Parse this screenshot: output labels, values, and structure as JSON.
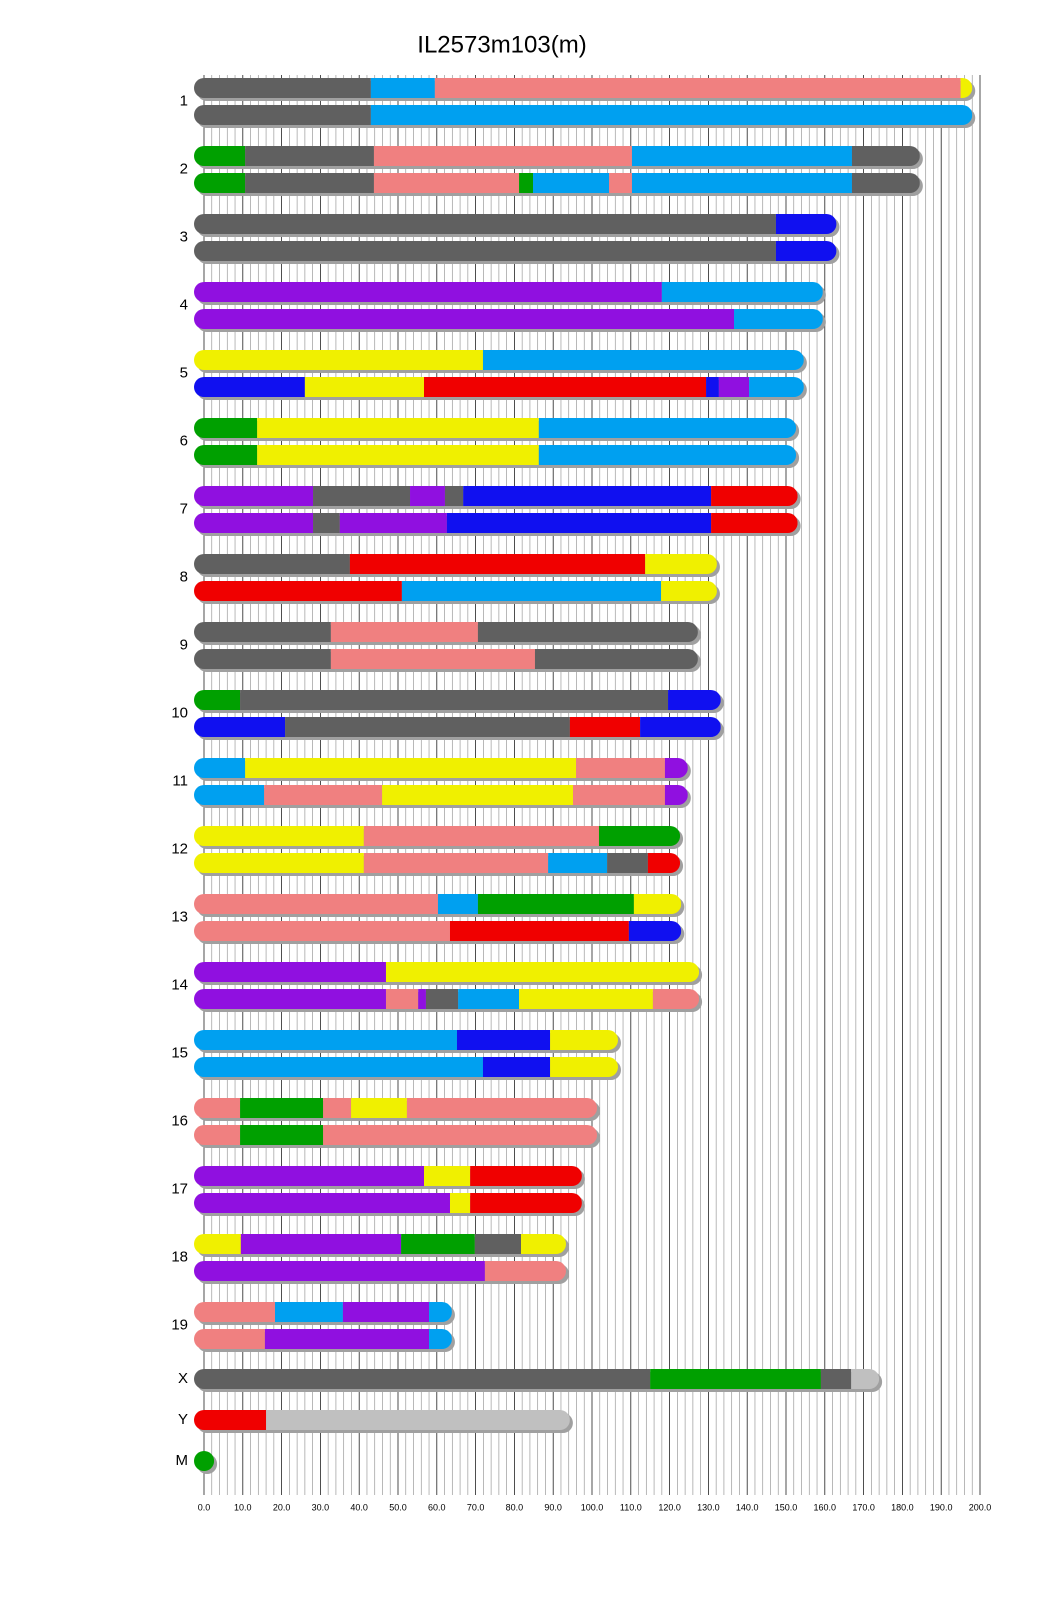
{
  "chart_data": {
    "type": "chromosome_painting",
    "title": "IL2573m103(m)",
    "xlim": [
      0,
      200
    ],
    "xticks": [
      {
        "value": 0,
        "label": "0.0"
      },
      {
        "value": 10,
        "label": "10.0"
      },
      {
        "value": 20,
        "label": "20.0"
      },
      {
        "value": 30,
        "label": "30.0"
      },
      {
        "value": 40,
        "label": "40.0"
      },
      {
        "value": 50,
        "label": "50.0"
      },
      {
        "value": 60,
        "label": "60.0"
      },
      {
        "value": 70,
        "label": "70.0"
      },
      {
        "value": 80,
        "label": "80.0"
      },
      {
        "value": 90,
        "label": "90.0"
      },
      {
        "value": 100,
        "label": "100.0"
      },
      {
        "value": 110,
        "label": "110.0"
      },
      {
        "value": 120,
        "label": "120.0"
      },
      {
        "value": 130,
        "label": "130.0"
      },
      {
        "value": 140,
        "label": "140.0"
      },
      {
        "value": 150,
        "label": "150.0"
      },
      {
        "value": 160,
        "label": "160.0"
      },
      {
        "value": 170,
        "label": "170.0"
      },
      {
        "value": 180,
        "label": "180.0"
      },
      {
        "value": 190,
        "label": "190.0"
      },
      {
        "value": 200,
        "label": "200.0"
      }
    ],
    "xminor": [
      2,
      4,
      6,
      8,
      12,
      14,
      16,
      18,
      22,
      24,
      26,
      28,
      32,
      34,
      36,
      38,
      42,
      44,
      46,
      48,
      52,
      54,
      56,
      58,
      62,
      64,
      66,
      68,
      72,
      74,
      76,
      78,
      82,
      84,
      86,
      88,
      92,
      94,
      96,
      98,
      102,
      104,
      106,
      108,
      112,
      114,
      116,
      118,
      122,
      124,
      126,
      128,
      132,
      134,
      136,
      138,
      142,
      144,
      146,
      148,
      152,
      154,
      156,
      158,
      162,
      164,
      166,
      168,
      172,
      174,
      176,
      178,
      182,
      184,
      186,
      188,
      192,
      194,
      196,
      198
    ],
    "chromosomes": [
      {
        "name": "1",
        "haplotypes": [
          {
            "ends": [
              43,
              59.5,
              195,
              198
            ],
            "colors": [
              "#606060",
              "#00a0f0",
              "#f08080",
              "#f0f000"
            ]
          },
          {
            "ends": [
              43,
              198
            ],
            "colors": [
              "#606060",
              "#00a0f0"
            ]
          }
        ]
      },
      {
        "name": "2",
        "haplotypes": [
          {
            "ends": [
              10.6,
              43.8,
              110.3,
              167,
              184.5
            ],
            "colors": [
              "#00a000",
              "#606060",
              "#f08080",
              "#00a0f0",
              "#606060"
            ]
          },
          {
            "ends": [
              10.6,
              43.8,
              81.2,
              84.8,
              104.4,
              110.3,
              167,
              184.5
            ],
            "colors": [
              "#00a000",
              "#606060",
              "#f08080",
              "#00a000",
              "#00a0f0",
              "#f08080",
              "#00a0f0",
              "#606060"
            ]
          }
        ]
      },
      {
        "name": "3",
        "haplotypes": [
          {
            "ends": [
              147.4,
              163
            ],
            "colors": [
              "#606060",
              "#1010f0"
            ]
          },
          {
            "ends": [
              147.4,
              163
            ],
            "colors": [
              "#606060",
              "#1010f0"
            ]
          }
        ]
      },
      {
        "name": "4",
        "haplotypes": [
          {
            "ends": [
              118,
              159.5
            ],
            "colors": [
              "#9010e0",
              "#00a0f0"
            ]
          },
          {
            "ends": [
              136.6,
              159.5
            ],
            "colors": [
              "#9010e0",
              "#00a0f0"
            ]
          }
        ]
      },
      {
        "name": "5",
        "haplotypes": [
          {
            "ends": [
              71.9,
              154.6
            ],
            "colors": [
              "#f0f000",
              "#00a0f0"
            ]
          },
          {
            "ends": [
              26,
              56.7,
              129.4,
              132.7,
              140.5,
              154.6
            ],
            "colors": [
              "#1010f0",
              "#f0f000",
              "#f00000",
              "#1010f0",
              "#9010e0",
              "#00a0f0"
            ]
          }
        ]
      },
      {
        "name": "6",
        "haplotypes": [
          {
            "ends": [
              13.7,
              86.3,
              152.6
            ],
            "colors": [
              "#00a000",
              "#f0f000",
              "#00a0f0"
            ]
          },
          {
            "ends": [
              13.7,
              86.3,
              152.6
            ],
            "colors": [
              "#00a000",
              "#f0f000",
              "#00a0f0"
            ]
          }
        ]
      },
      {
        "name": "7",
        "haplotypes": [
          {
            "ends": [
              28.1,
              53.1,
              62.1,
              66.8,
              130.7,
              153
            ],
            "colors": [
              "#9010e0",
              "#606060",
              "#9010e0",
              "#606060",
              "#1010f0",
              "#f00000"
            ]
          },
          {
            "ends": [
              28.1,
              35,
              62.6,
              130.7,
              153
            ],
            "colors": [
              "#9010e0",
              "#606060",
              "#9010e0",
              "#1010f0",
              "#f00000"
            ]
          }
        ]
      },
      {
        "name": "8",
        "haplotypes": [
          {
            "ends": [
              37.6,
              113.7,
              132.2
            ],
            "colors": [
              "#606060",
              "#f00000",
              "#f0f000"
            ]
          },
          {
            "ends": [
              51,
              117.8,
              132.2
            ],
            "colors": [
              "#f00000",
              "#00a0f0",
              "#f0f000"
            ]
          }
        ]
      },
      {
        "name": "9",
        "haplotypes": [
          {
            "ends": [
              32.7,
              70.6,
              127.3
            ],
            "colors": [
              "#606060",
              "#f08080",
              "#606060"
            ]
          },
          {
            "ends": [
              32.7,
              85.3,
              127.3
            ],
            "colors": [
              "#606060",
              "#f08080",
              "#606060"
            ]
          }
        ]
      },
      {
        "name": "10",
        "haplotypes": [
          {
            "ends": [
              9.3,
              119.6,
              133.2
            ],
            "colors": [
              "#00a000",
              "#606060",
              "#1010f0"
            ]
          },
          {
            "ends": [
              20.9,
              94.3,
              112.4,
              133.2
            ],
            "colors": [
              "#1010f0",
              "#606060",
              "#f00000",
              "#1010f0"
            ]
          }
        ]
      },
      {
        "name": "11",
        "haplotypes": [
          {
            "ends": [
              10.6,
              95.9,
              118.8,
              124.7
            ],
            "colors": [
              "#00a0f0",
              "#f0f000",
              "#f08080",
              "#9010e0"
            ]
          },
          {
            "ends": [
              15.5,
              45.9,
              95.1,
              118.8,
              124.7
            ],
            "colors": [
              "#00a0f0",
              "#f08080",
              "#f0f000",
              "#f08080",
              "#9010e0"
            ]
          }
        ]
      },
      {
        "name": "12",
        "haplotypes": [
          {
            "ends": [
              41.2,
              101.8,
              122.7
            ],
            "colors": [
              "#f0f000",
              "#f08080",
              "#00a000"
            ]
          },
          {
            "ends": [
              41.2,
              88.7,
              103.9,
              114.4,
              122.7
            ],
            "colors": [
              "#f0f000",
              "#f08080",
              "#00a0f0",
              "#606060",
              "#f00000"
            ]
          }
        ]
      },
      {
        "name": "13",
        "haplotypes": [
          {
            "ends": [
              60.3,
              70.6,
              110.8,
              123
            ],
            "colors": [
              "#f08080",
              "#00a0f0",
              "#00a000",
              "#f0f000"
            ]
          },
          {
            "ends": [
              63.4,
              109.5,
              123
            ],
            "colors": [
              "#f08080",
              "#f00000",
              "#1010f0"
            ]
          }
        ]
      },
      {
        "name": "14",
        "haplotypes": [
          {
            "ends": [
              46.9,
              127.6
            ],
            "colors": [
              "#9010e0",
              "#f0f000"
            ]
          },
          {
            "ends": [
              46.9,
              55.2,
              57.2,
              65.5,
              81.2,
              115.7,
              127.6
            ],
            "colors": [
              "#9010e0",
              "#f08080",
              "#9010e0",
              "#606060",
              "#00a0f0",
              "#f0f000",
              "#f08080"
            ]
          }
        ]
      },
      {
        "name": "15",
        "haplotypes": [
          {
            "ends": [
              65.2,
              89.2,
              106.7
            ],
            "colors": [
              "#00a0f0",
              "#1010f0",
              "#f0f000"
            ]
          },
          {
            "ends": [
              71.9,
              89.2,
              106.7
            ],
            "colors": [
              "#00a0f0",
              "#1010f0",
              "#f0f000"
            ]
          }
        ]
      },
      {
        "name": "16",
        "haplotypes": [
          {
            "ends": [
              9.3,
              30.7,
              37.9,
              52.3,
              101.3
            ],
            "colors": [
              "#f08080",
              "#00a000",
              "#f08080",
              "#f0f000",
              "#f08080"
            ]
          },
          {
            "ends": [
              9.3,
              30.7,
              101.3
            ],
            "colors": [
              "#f08080",
              "#00a000",
              "#f08080"
            ]
          }
        ]
      },
      {
        "name": "17",
        "haplotypes": [
          {
            "ends": [
              56.7,
              68.6,
              97.4
            ],
            "colors": [
              "#9010e0",
              "#f0f000",
              "#f00000"
            ]
          },
          {
            "ends": [
              63.4,
              68.6,
              97.4
            ],
            "colors": [
              "#9010e0",
              "#f0f000",
              "#f00000"
            ]
          }
        ]
      },
      {
        "name": "18",
        "haplotypes": [
          {
            "ends": [
              9.5,
              50.8,
              69.8,
              81.7,
              93.3
            ],
            "colors": [
              "#f0f000",
              "#9010e0",
              "#00a000",
              "#606060",
              "#f0f000"
            ]
          },
          {
            "ends": [
              72.4,
              93.3
            ],
            "colors": [
              "#9010e0",
              "#f08080"
            ]
          }
        ]
      },
      {
        "name": "19",
        "haplotypes": [
          {
            "ends": [
              18.3,
              35.8,
              58,
              63.9
            ],
            "colors": [
              "#f08080",
              "#00a0f0",
              "#9010e0",
              "#00a0f0"
            ]
          },
          {
            "ends": [
              15.7,
              58,
              63.9
            ],
            "colors": [
              "#f08080",
              "#9010e0",
              "#00a0f0"
            ]
          }
        ]
      },
      {
        "name": "X",
        "haplotypes": [
          {
            "ends": [
              115,
              159,
              166.8,
              174
            ],
            "colors": [
              "#606060",
              "#00a000",
              "#606060",
              "#c0c0c0"
            ]
          }
        ]
      },
      {
        "name": "Y",
        "haplotypes": [
          {
            "ends": [
              16,
              94.3
            ],
            "colors": [
              "#f00000",
              "#c0c0c0"
            ]
          }
        ]
      },
      {
        "name": "M",
        "haplotypes": [
          {
            "ends": [
              2.6
            ],
            "colors": [
              "#00a000"
            ]
          }
        ]
      }
    ]
  }
}
